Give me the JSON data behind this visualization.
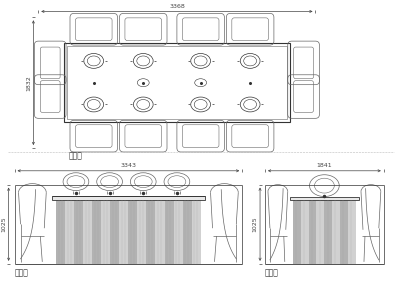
{
  "bg_color": "#ffffff",
  "line_color": "#666666",
  "dark_color": "#333333",
  "top_view_label": "顶视图",
  "front_view_label": "正视图",
  "side_view_label": "侧视图",
  "dim_3368": "3368",
  "dim_1832": "1832",
  "dim_3343": "3343",
  "dim_1025_front": "1025",
  "dim_1841": "1841",
  "dim_1025_side": "1025",
  "font_size_label": 5.5,
  "font_size_dim": 4.5
}
